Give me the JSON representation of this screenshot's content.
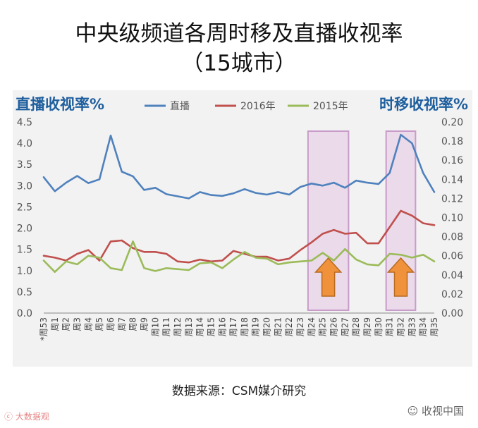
{
  "title_line1": "中央级频道各周时移及直播收视率",
  "title_line2": "（15城市）",
  "source": "数据来源：CSM媒介研究",
  "watermark_left": "大数据观",
  "watermark_right": "收视中国",
  "chart_data": {
    "type": "line",
    "ylabel": "直播收视率%",
    "y2label": "时移收视率%",
    "ylim": [
      0,
      4.5
    ],
    "y_ticks": [
      "0.0",
      "0.5",
      "1.0",
      "1.5",
      "2.0",
      "2.5",
      "3.0",
      "3.5",
      "4.0",
      "4.5"
    ],
    "y2lim": [
      0,
      0.2
    ],
    "y2_ticks": [
      "0.00",
      "0.02",
      "0.04",
      "0.06",
      "0.08",
      "0.10",
      "0.12",
      "0.14",
      "0.16",
      "0.18",
      "0.20"
    ],
    "legend_position": "top",
    "grid": false,
    "categories": [
      "*周53",
      "周1",
      "周2",
      "周3",
      "周4",
      "周5",
      "周6",
      "周7",
      "周8",
      "周9",
      "周10",
      "周11",
      "周12",
      "周13",
      "周14",
      "周15",
      "周16",
      "周17",
      "周18",
      "周19",
      "周20",
      "周21",
      "周22",
      "周23",
      "周24",
      "周25",
      "周26",
      "周27",
      "周28",
      "周29",
      "周30",
      "周31",
      "周32",
      "周33",
      "周34",
      "周35"
    ],
    "series": [
      {
        "name": "直播",
        "axis": "left",
        "color": "#4f81bd",
        "values": [
          3.2,
          2.87,
          3.07,
          3.23,
          3.06,
          3.15,
          4.18,
          3.33,
          3.22,
          2.9,
          2.95,
          2.8,
          2.75,
          2.7,
          2.85,
          2.78,
          2.76,
          2.82,
          2.92,
          2.83,
          2.79,
          2.85,
          2.79,
          2.97,
          3.05,
          3.0,
          3.07,
          2.95,
          3.12,
          3.07,
          3.04,
          3.3,
          4.2,
          4.0,
          3.3,
          2.85
        ]
      },
      {
        "name": "2016年",
        "axis": "right",
        "color": "#c0504d",
        "values": [
          0.06,
          0.058,
          0.055,
          0.062,
          0.066,
          0.055,
          0.075,
          0.076,
          0.068,
          0.064,
          0.064,
          0.062,
          0.054,
          0.053,
          0.056,
          0.054,
          0.055,
          0.065,
          0.062,
          0.059,
          0.059,
          0.055,
          0.057,
          0.066,
          0.074,
          0.083,
          0.087,
          0.083,
          0.084,
          0.073,
          0.073,
          0.09,
          0.107,
          0.102,
          0.094,
          0.092
        ]
      },
      {
        "name": "2015年",
        "axis": "right",
        "color": "#9bbb59",
        "values": [
          0.055,
          0.043,
          0.054,
          0.051,
          0.06,
          0.058,
          0.047,
          0.045,
          0.075,
          0.047,
          0.044,
          0.047,
          0.046,
          0.045,
          0.052,
          0.053,
          0.047,
          0.056,
          0.064,
          0.058,
          0.057,
          0.051,
          0.053,
          0.054,
          0.055,
          0.063,
          0.055,
          0.067,
          0.056,
          0.051,
          0.05,
          0.062,
          0.061,
          0.058,
          0.061,
          0.054
        ]
      }
    ],
    "highlights": [
      {
        "from": "周24",
        "to": "周27",
        "arrow": "up"
      },
      {
        "from": "周31",
        "to": "周33",
        "arrow": "up"
      }
    ]
  }
}
